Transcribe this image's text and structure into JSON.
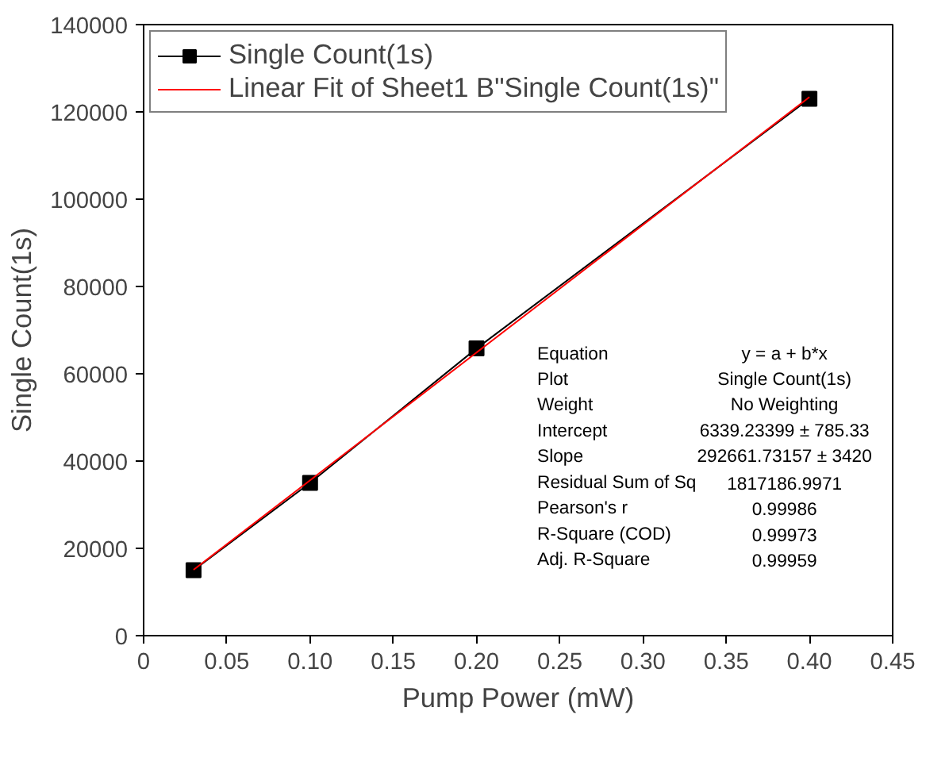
{
  "chart_data": {
    "type": "line",
    "xlabel": "Pump Power (mW)",
    "ylabel": "Single Count(1s)",
    "xlim": [
      0,
      0.45
    ],
    "xticks": [
      0,
      {
        "value": 0.05,
        "label": "0.05"
      },
      {
        "value": 0.1,
        "label": "0.10"
      },
      {
        "value": 0.15,
        "label": "0.15"
      },
      {
        "value": 0.2,
        "label": "0.20"
      },
      {
        "value": 0.25,
        "label": "0.25"
      },
      {
        "value": 0.3,
        "label": "0.30"
      },
      {
        "value": 0.35,
        "label": "0.35"
      },
      {
        "value": 0.4,
        "label": "0.40"
      },
      {
        "value": 0.45,
        "label": "0.45"
      }
    ],
    "ylim": [
      0,
      140000
    ],
    "yticks": [
      0,
      20000,
      40000,
      60000,
      80000,
      100000,
      120000,
      140000
    ],
    "x": [
      0.03,
      0.1,
      0.2,
      0.4
    ],
    "series": [
      {
        "name": "Single Count(1s)",
        "color": "#000000",
        "values": [
          15000,
          35000,
          65800,
          123000
        ],
        "marker": "square"
      },
      {
        "name": "Linear Fit of Sheet1 B\"Single Count(1s)\"",
        "color": "#ff0000",
        "x": [
          0.03,
          0.4
        ],
        "values": [
          15100,
          123400
        ],
        "marker": "none"
      }
    ],
    "annotations": [
      "Equation",
      "y = a + b*x",
      "Plot",
      "Single Count(1s)",
      "Weight",
      "No Weighting",
      "Intercept",
      "6339.23399 ± 785.33",
      "Slope",
      "292661.73157 ± 3420",
      "Residual Sum of Sq",
      "1817186.9971",
      "Pearson's r",
      "0.99986",
      "R-Square (COD)",
      "0.99973",
      "Adj. R-Square",
      "0.99959"
    ],
    "legend": "top left",
    "grid": false
  }
}
